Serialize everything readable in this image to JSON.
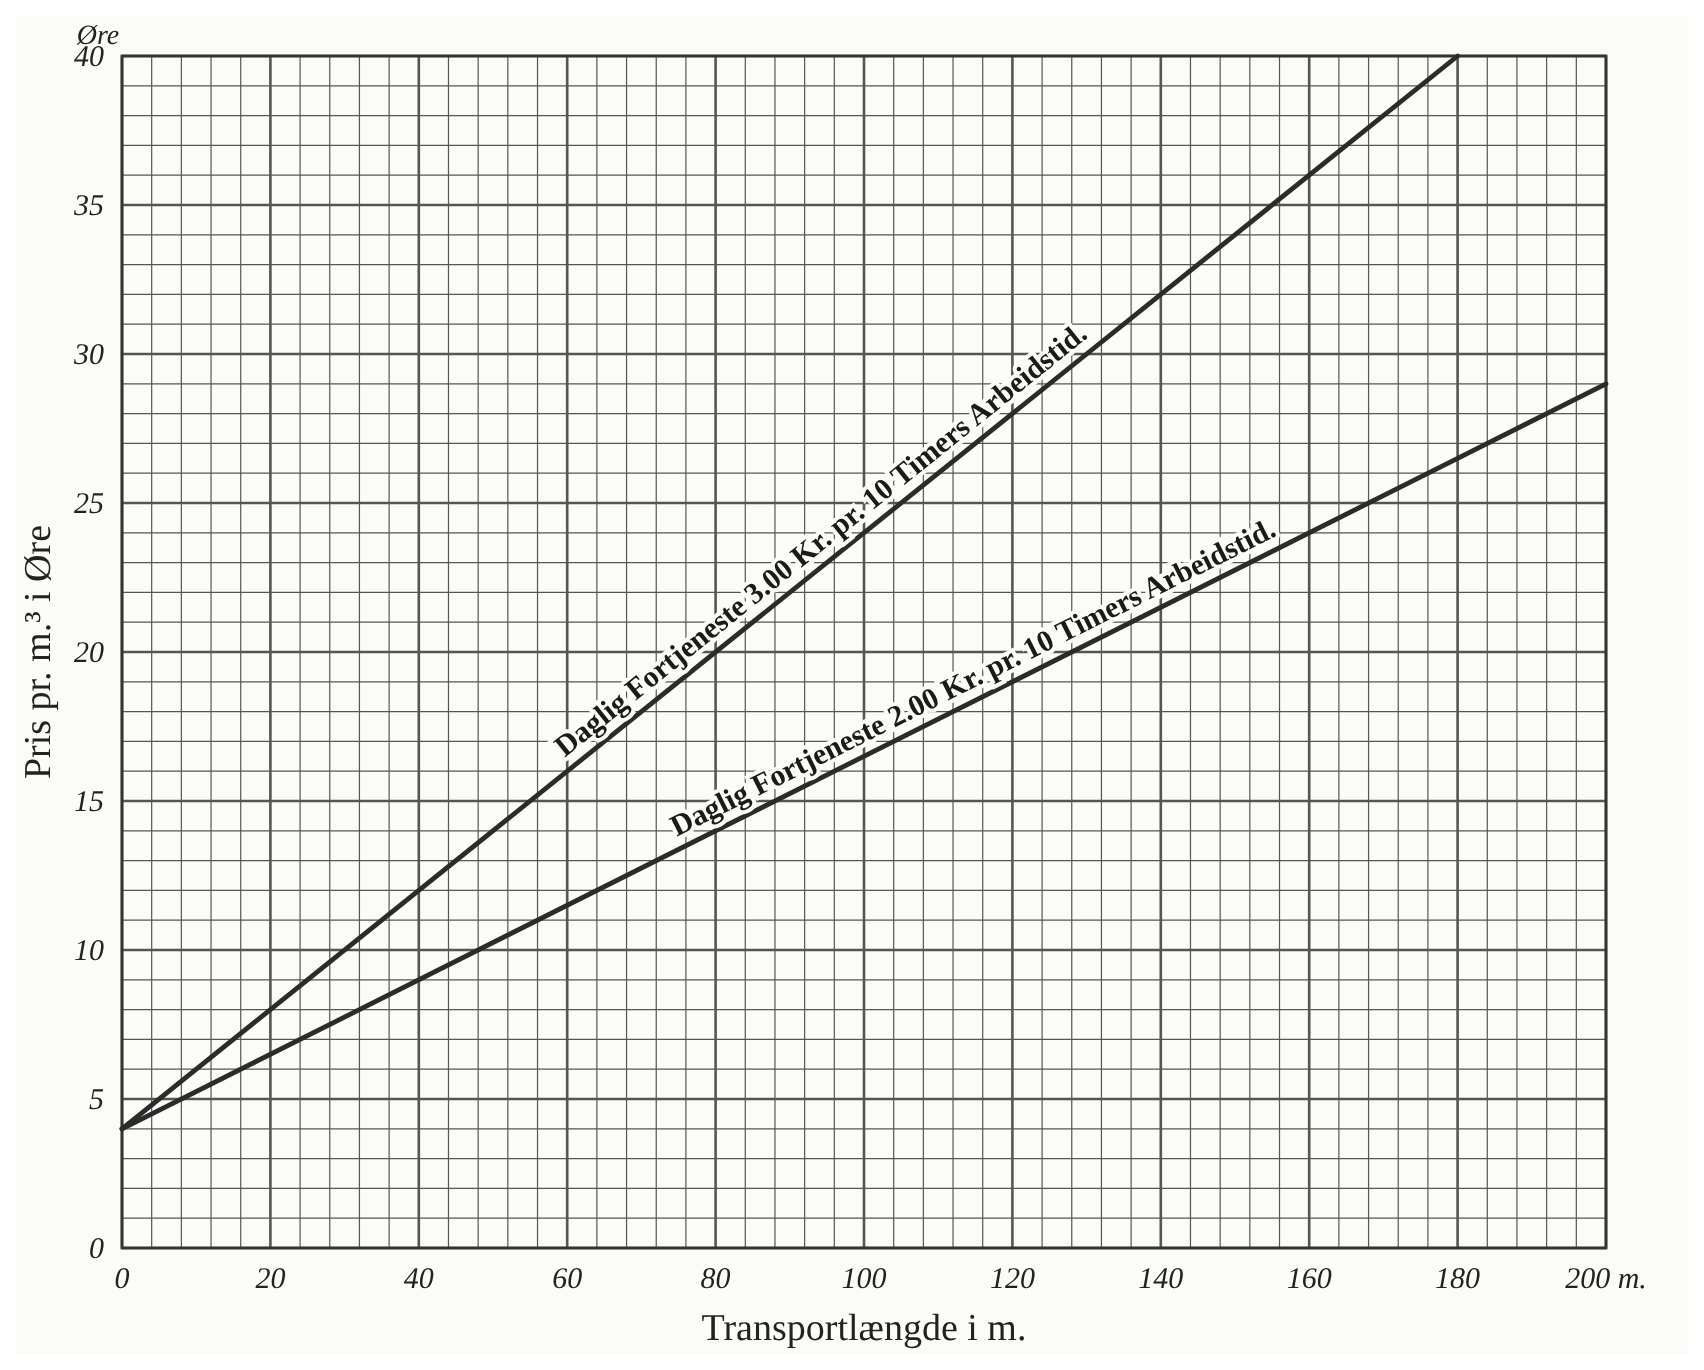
{
  "chart_data": {
    "type": "line",
    "xlabel": "Transportlængde i m.",
    "ylabel": "Pris pr. m.³ i Øre",
    "x": [
      0,
      180,
      200
    ],
    "series": [
      {
        "color": "#2b2b2b",
        "values": [
          4,
          40,
          null
        ]
      },
      {
        "color": "#2b2b2b",
        "values": [
          4,
          26.5,
          29
        ]
      }
    ],
    "xlim": [
      0,
      200
    ],
    "ylim": [
      0,
      40
    ],
    "xticks": [
      0,
      {
        "value": 4,
        "label": null
      },
      {
        "value": 8,
        "label": null
      },
      {
        "value": 12,
        "label": null
      },
      {
        "value": 16,
        "label": null
      },
      20,
      {
        "value": 24,
        "label": null
      },
      {
        "value": 28,
        "label": null
      },
      {
        "value": 32,
        "label": null
      },
      {
        "value": 36,
        "label": null
      },
      40,
      {
        "value": 44,
        "label": null
      },
      {
        "value": 48,
        "label": null
      },
      {
        "value": 52,
        "label": null
      },
      {
        "value": 56,
        "label": null
      },
      60,
      {
        "value": 64,
        "label": null
      },
      {
        "value": 68,
        "label": null
      },
      {
        "value": 72,
        "label": null
      },
      {
        "value": 76,
        "label": null
      },
      80,
      {
        "value": 84,
        "label": null
      },
      {
        "value": 88,
        "label": null
      },
      {
        "value": 92,
        "label": null
      },
      {
        "value": 96,
        "label": null
      },
      100,
      {
        "value": 104,
        "label": null
      },
      {
        "value": 108,
        "label": null
      },
      {
        "value": 112,
        "label": null
      },
      {
        "value": 116,
        "label": null
      },
      120,
      {
        "value": 124,
        "label": null
      },
      {
        "value": 128,
        "label": null
      },
      {
        "value": 132,
        "label": null
      },
      {
        "value": 136,
        "label": null
      },
      140,
      {
        "value": 144,
        "label": null
      },
      {
        "value": 148,
        "label": null
      },
      {
        "value": 152,
        "label": null
      },
      {
        "value": 156,
        "label": null
      },
      160,
      {
        "value": 164,
        "label": null
      },
      {
        "value": 168,
        "label": null
      },
      {
        "value": 172,
        "label": null
      },
      {
        "value": 176,
        "label": null
      },
      180,
      {
        "value": 184,
        "label": null
      },
      {
        "value": 188,
        "label": null
      },
      {
        "value": 192,
        "label": null
      },
      {
        "value": 196,
        "label": null
      },
      {
        "value": 200,
        "label": "200 m."
      }
    ],
    "yticks": [
      0,
      {
        "value": 1,
        "label": null
      },
      {
        "value": 2,
        "label": null
      },
      {
        "value": 3,
        "label": null
      },
      {
        "value": 4,
        "label": null
      },
      5,
      {
        "value": 6,
        "label": null
      },
      {
        "value": 7,
        "label": null
      },
      {
        "value": 8,
        "label": null
      },
      {
        "value": 9,
        "label": null
      },
      10,
      {
        "value": 11,
        "label": null
      },
      {
        "value": 12,
        "label": null
      },
      {
        "value": 13,
        "label": null
      },
      {
        "value": 14,
        "label": null
      },
      15,
      {
        "value": 16,
        "label": null
      },
      {
        "value": 17,
        "label": null
      },
      {
        "value": 18,
        "label": null
      },
      {
        "value": 19,
        "label": null
      },
      20,
      {
        "value": 21,
        "label": null
      },
      {
        "value": 22,
        "label": null
      },
      {
        "value": 23,
        "label": null
      },
      {
        "value": 24,
        "label": null
      },
      25,
      {
        "value": 26,
        "label": null
      },
      {
        "value": 27,
        "label": null
      },
      {
        "value": 28,
        "label": null
      },
      {
        "value": 29,
        "label": null
      },
      30,
      {
        "value": 31,
        "label": null
      },
      {
        "value": 32,
        "label": null
      },
      {
        "value": 33,
        "label": null
      },
      {
        "value": 34,
        "label": null
      },
      35,
      {
        "value": 36,
        "label": null
      },
      {
        "value": 37,
        "label": null
      },
      {
        "value": 38,
        "label": null
      },
      {
        "value": 39,
        "label": null
      },
      40
    ],
    "grid": true,
    "marker": "none",
    "line_style": "solid",
    "annotations": [
      "Øre",
      {
        "text": "Daglig Fortjeneste 3.00 Kr. pr. 10 Timers Arbeidstid.",
        "x": 96,
        "y": 23.2
      },
      {
        "text": "Daglig Fortjeneste 2.00 Kr. pr. 10 Timers Arbeidstid.",
        "x": 116,
        "y": 18.5
      }
    ]
  }
}
